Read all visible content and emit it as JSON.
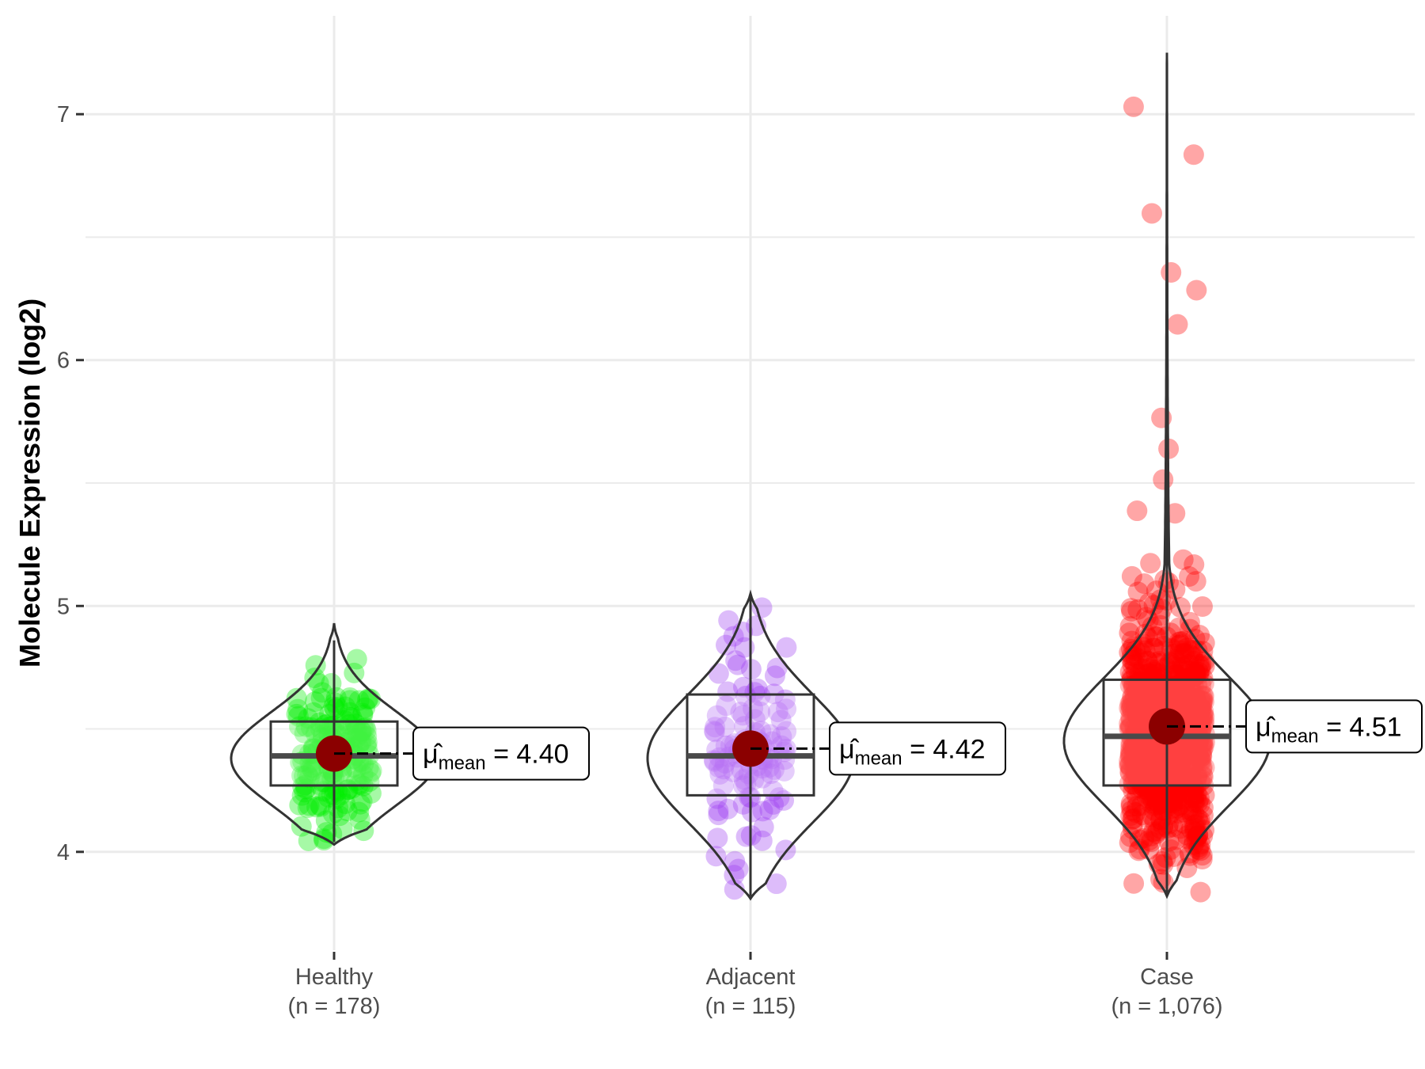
{
  "chart_data": {
    "type": "violin",
    "title": "",
    "xlabel": "",
    "ylabel": "Molecule Expression (log2)",
    "ylim": [
      3.6,
      7.4
    ],
    "yticks": [
      4,
      5,
      6,
      7
    ],
    "grid": true,
    "legend": "none",
    "groups": [
      {
        "name": "Healthy",
        "count_label": "(n = 178)",
        "color": "#00ee00",
        "n": 178,
        "mean": 4.4,
        "mean_label": "4.40",
        "box": {
          "min": 4.04,
          "q1": 4.27,
          "median": 4.39,
          "q3": 4.53,
          "max": 4.86
        },
        "violin": {
          "min": 4.03,
          "max": 4.93,
          "mode": 4.38,
          "spread": 0.19
        }
      },
      {
        "name": "Adjacent",
        "count_label": "(n = 115)",
        "color": "#9f3ff0",
        "n": 115,
        "mean": 4.42,
        "mean_label": "4.42",
        "box": {
          "min": 3.82,
          "q1": 4.23,
          "median": 4.39,
          "q3": 4.64,
          "max": 5.05
        },
        "violin": {
          "min": 3.81,
          "max": 5.05,
          "mode": 4.38,
          "spread": 0.26
        }
      },
      {
        "name": "Case",
        "count_label": "(n = 1,076)",
        "color": "#ff0000",
        "n": 1076,
        "mean": 4.51,
        "mean_label": "4.51",
        "box": {
          "min": 3.82,
          "q1": 4.27,
          "median": 4.47,
          "q3": 4.7,
          "max": 7.25
        },
        "violin": {
          "min": 3.82,
          "max": 7.25,
          "mode": 4.45,
          "spread": 0.26
        }
      }
    ],
    "mean_marker_color": "#8b0000",
    "mean_symbol": "μ̂",
    "mean_subscript": "mean"
  }
}
